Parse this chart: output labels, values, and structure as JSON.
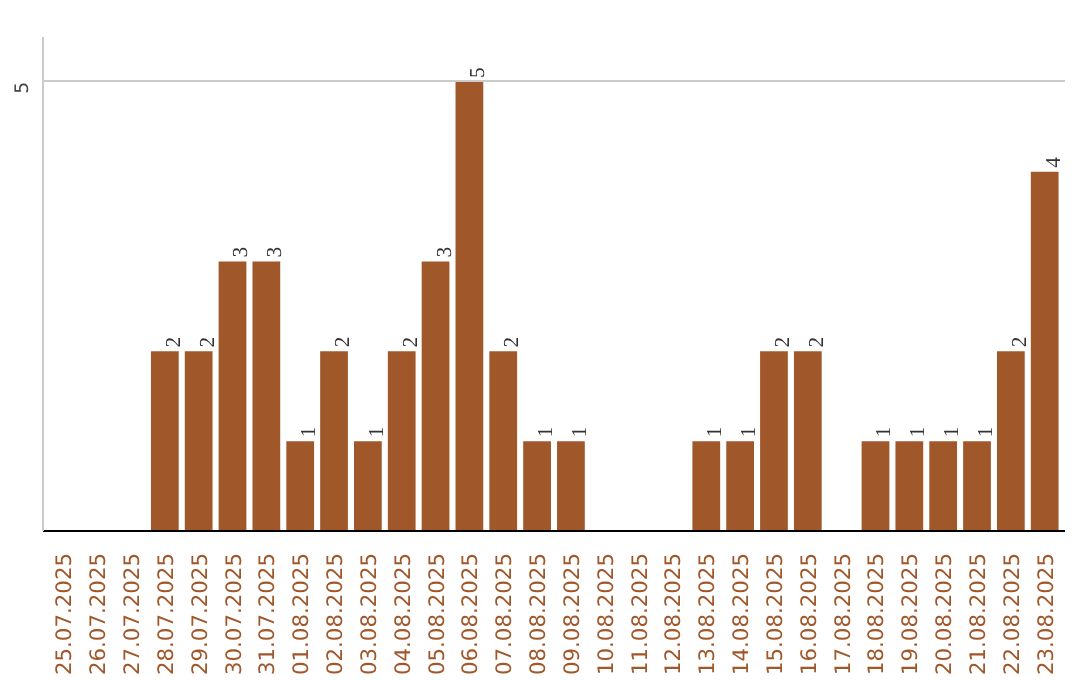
{
  "chart_data": {
    "type": "bar",
    "categories": [
      "25.07.2025",
      "26.07.2025",
      "27.07.2025",
      "28.07.2025",
      "29.07.2025",
      "30.07.2025",
      "31.07.2025",
      "01.08.2025",
      "02.08.2025",
      "03.08.2025",
      "04.08.2025",
      "05.08.2025",
      "06.08.2025",
      "07.08.2025",
      "08.08.2025",
      "09.08.2025",
      "10.08.2025",
      "11.08.2025",
      "12.08.2025",
      "13.08.2025",
      "14.08.2025",
      "15.08.2025",
      "16.08.2025",
      "17.08.2025",
      "18.08.2025",
      "19.08.2025",
      "20.08.2025",
      "21.08.2025",
      "22.08.2025",
      "23.08.2025"
    ],
    "values": [
      0,
      0,
      0,
      2,
      2,
      3,
      3,
      1,
      2,
      1,
      2,
      3,
      5,
      2,
      1,
      1,
      0,
      0,
      0,
      1,
      1,
      2,
      2,
      0,
      1,
      1,
      1,
      1,
      2,
      4
    ],
    "value_labels": [
      null,
      null,
      null,
      "2",
      "2",
      "3",
      "3",
      "1",
      "2",
      "1",
      "2",
      "3",
      "5",
      "2",
      "1",
      "1",
      null,
      null,
      null,
      "1",
      "1",
      "2",
      "2",
      null,
      "1",
      "1",
      "1",
      "1",
      "2",
      "4"
    ],
    "color": "#a0572a",
    "ylim": [
      0,
      5.5
    ],
    "yticks": [
      5
    ],
    "grid": "y"
  }
}
